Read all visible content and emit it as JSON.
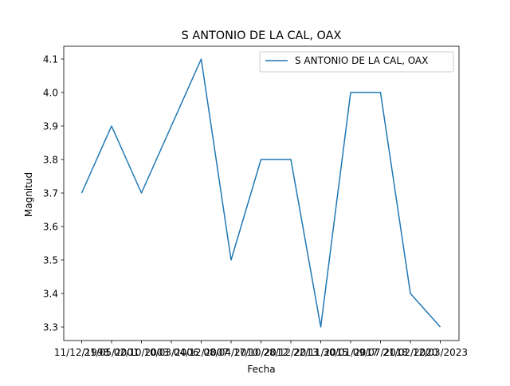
{
  "chart_data": {
    "type": "line",
    "title": "S ANTONIO DE LA CAL, OAX",
    "xlabel": "Fecha",
    "ylabel": "Magnitud",
    "x": [
      "11/12/1998",
      "21/05/2001",
      "02/10/2003",
      "10/03/2006",
      "04/12/2007",
      "08/04/2010",
      "17/10/2012",
      "28/12/2013",
      "22/11/2015",
      "30/01/2017",
      "09/07/2018",
      "21/02/2020",
      "12/03/2023"
    ],
    "series": [
      {
        "name": "S ANTONIO DE LA CAL, OAX",
        "color": "#1f77b4",
        "values": [
          3.7,
          3.9,
          3.7,
          3.9,
          4.1,
          3.5,
          3.8,
          3.8,
          3.3,
          4.0,
          4.0,
          3.4,
          3.3
        ]
      }
    ],
    "ylim": [
      3.3,
      4.1
    ],
    "yticks": [
      "3.3",
      "3.4",
      "3.5",
      "3.6",
      "3.7",
      "3.8",
      "3.9",
      "4.0",
      "4.1"
    ],
    "xtick_labels": [
      "11/12/1998",
      "21/05/2001",
      "02/10/2003",
      "10/03/2006",
      "04/12/2007",
      "08/04/2010",
      "17/10/2012",
      "28/12/2013",
      "22/11/2015",
      "30/01/2017",
      "09/07/2018",
      "21/02/2020",
      "12/03/2023"
    ],
    "grid": false,
    "legend": "top-right"
  }
}
